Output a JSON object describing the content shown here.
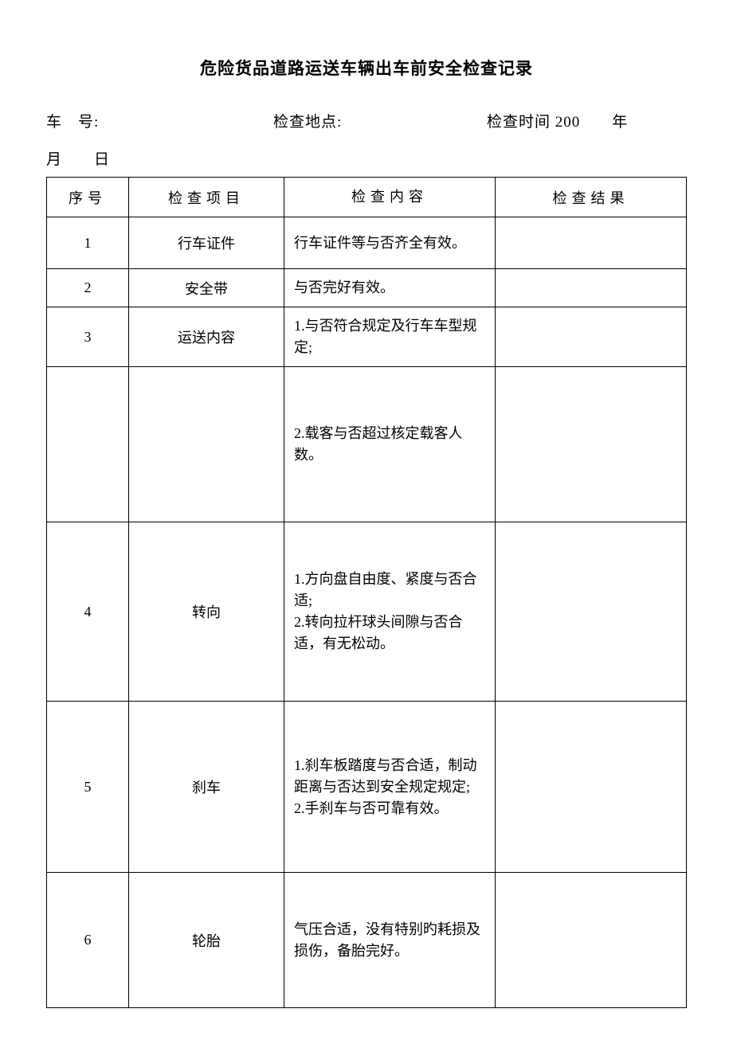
{
  "title": "危险货品道路运送车辆出车前安全检查记录",
  "header": {
    "vehicle_no_label": "车　号:",
    "check_location_label": "检查地点:",
    "check_time_label": "检查时间 200　　年",
    "line2": "月　　日"
  },
  "table": {
    "headers": {
      "seq": "序号",
      "item": "检查项目",
      "content": "检查内容",
      "result": "检查结果"
    },
    "rows": [
      {
        "seq": "1",
        "item": "行车证件",
        "content": "行车证件等与否齐全有效。",
        "result": ""
      },
      {
        "seq": "2",
        "item": "安全带",
        "content": "与否完好有效。",
        "result": ""
      },
      {
        "seq": "3",
        "item": "运送内容",
        "content": "1.与否符合规定及行车车型规定;",
        "result": ""
      },
      {
        "seq": "",
        "item": "",
        "content": "2.载客与否超过核定载客人数。",
        "result": ""
      },
      {
        "seq": "4",
        "item": "转向",
        "content": "1.方向盘自由度、紧度与否合适;\n2.转向拉杆球头间隙与否合适，有无松动。",
        "result": ""
      },
      {
        "seq": "5",
        "item": "刹车",
        "content": "1.刹车板踏度与否合适，制动距离与否达到安全规定规定;　　　2.手刹车与否可靠有效。",
        "result": ""
      },
      {
        "seq": "6",
        "item": "轮胎",
        "content": "气压合适，没有特别旳耗损及损伤，备胎完好。",
        "result": ""
      }
    ]
  },
  "style": {
    "background_color": "#ffffff",
    "text_color": "#000000",
    "border_color": "#000000",
    "title_fontsize": 21,
    "body_fontsize": 18,
    "header_fontsize": 19,
    "font_family": "SimSun"
  }
}
